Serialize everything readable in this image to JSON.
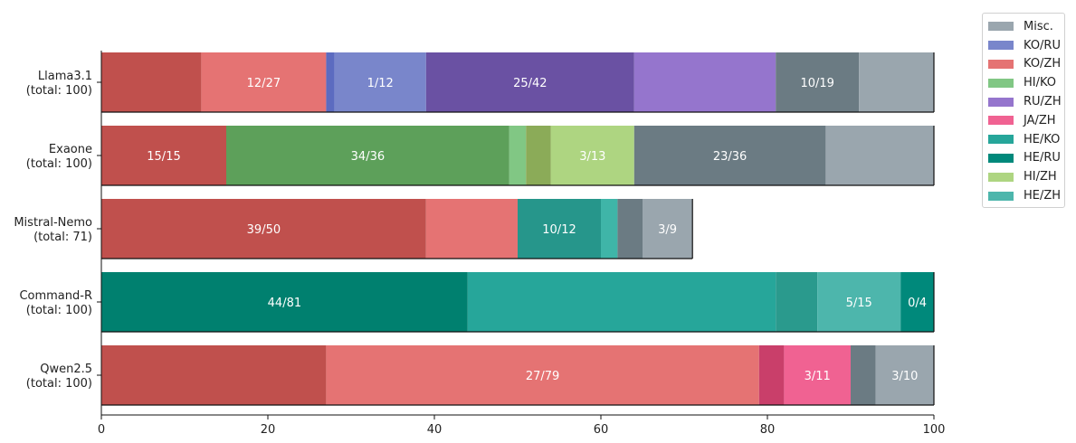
{
  "chart_data": {
    "type": "bar",
    "orientation": "horizontal",
    "stacked": true,
    "xlim": [
      0,
      100
    ],
    "x_ticks": [
      "0",
      "20",
      "40",
      "60",
      "80",
      "100"
    ],
    "categories": [
      [
        "Llama3.1",
        "(total: 100)"
      ],
      [
        "Exaone",
        "(total: 100)"
      ],
      [
        "Mistral-Nemo",
        "(total: 71)"
      ],
      [
        "Command-R",
        "(total: 100)"
      ],
      [
        "Qwen2.5",
        "(total: 100)"
      ]
    ],
    "legend": {
      "placement": "upper-right-outside",
      "entries": [
        {
          "label": "Misc.",
          "color": "#9aa6ae"
        },
        {
          "label": "KO/RU",
          "color": "#7986cb"
        },
        {
          "label": "KO/ZH",
          "color": "#e57373"
        },
        {
          "label": "HI/KO",
          "color": "#81c784"
        },
        {
          "label": "RU/ZH",
          "color": "#9575cd"
        },
        {
          "label": "JA/ZH",
          "color": "#f06292"
        },
        {
          "label": "HE/KO",
          "color": "#26a69a"
        },
        {
          "label": "HE/RU",
          "color": "#00897b"
        },
        {
          "label": "HI/ZH",
          "color": "#aed581"
        },
        {
          "label": "HE/ZH",
          "color": "#4db6ac"
        }
      ]
    },
    "bars": [
      {
        "name": "Llama3.1",
        "total": 100,
        "segments": [
          {
            "group": "KO/ZH",
            "value": 12,
            "color": "#c0504d"
          },
          {
            "group": "KO/ZH",
            "value": 15,
            "color": "#e57373",
            "label": "12/27"
          },
          {
            "group": "KO/RU",
            "value": 1,
            "color": "#5c6bc0"
          },
          {
            "group": "KO/RU",
            "value": 11,
            "color": "#7986cb",
            "label": "1/12"
          },
          {
            "group": "RU/ZH",
            "value": 25,
            "color": "#6a51a3",
            "label": "25/42"
          },
          {
            "group": "RU/ZH",
            "value": 17,
            "color": "#9575cd"
          },
          {
            "group": "Misc.",
            "value": 10,
            "color": "#6b7b83",
            "label": "10/19"
          },
          {
            "group": "Misc.",
            "value": 9,
            "color": "#9aa6ae"
          }
        ]
      },
      {
        "name": "Exaone",
        "total": 100,
        "segments": [
          {
            "group": "KO/ZH",
            "value": 15,
            "color": "#c0504d",
            "label": "15/15"
          },
          {
            "group": "HI/KO",
            "value": 34,
            "color": "#5da05a",
            "label": "34/36"
          },
          {
            "group": "HI/KO",
            "value": 2,
            "color": "#81c784"
          },
          {
            "group": "HI/ZH",
            "value": 3,
            "color": "#8bab58"
          },
          {
            "group": "HI/ZH",
            "value": 10,
            "color": "#aed581",
            "label": "3/13"
          },
          {
            "group": "Misc.",
            "value": 23,
            "color": "#6b7b83",
            "label": "23/36"
          },
          {
            "group": "Misc.",
            "value": 13,
            "color": "#9aa6ae"
          }
        ]
      },
      {
        "name": "Mistral-Nemo",
        "total": 71,
        "segments": [
          {
            "group": "KO/ZH",
            "value": 39,
            "color": "#c0504d",
            "label": "39/50"
          },
          {
            "group": "KO/ZH",
            "value": 11,
            "color": "#e57373"
          },
          {
            "group": "HE/KO",
            "value": 10,
            "color": "#26968b",
            "label": "10/12"
          },
          {
            "group": "HE/KO",
            "value": 2,
            "color": "#3fb5a8"
          },
          {
            "group": "Misc.",
            "value": 3,
            "color": "#6b7b83"
          },
          {
            "group": "Misc.",
            "value": 6,
            "color": "#9aa6ae",
            "label": "3/9"
          }
        ]
      },
      {
        "name": "Command-R",
        "total": 100,
        "segments": [
          {
            "group": "HE/RU",
            "value": 44,
            "color": "#00806f",
            "label": "44/81"
          },
          {
            "group": "HE/RU",
            "value": 37,
            "color": "#26a69a"
          },
          {
            "group": "HE/ZH",
            "value": 5,
            "color": "#2a9a8d"
          },
          {
            "group": "HE/ZH",
            "value": 10,
            "color": "#4db6ac",
            "label": "5/15"
          },
          {
            "group": "HE/KO",
            "value": 4,
            "color": "#00897b",
            "label": "0/4"
          }
        ]
      },
      {
        "name": "Qwen2.5",
        "total": 100,
        "segments": [
          {
            "group": "KO/ZH",
            "value": 27,
            "color": "#c0504d"
          },
          {
            "group": "KO/ZH",
            "value": 52,
            "color": "#e57373",
            "label": "27/79"
          },
          {
            "group": "JA/ZH",
            "value": 3,
            "color": "#c93f6a"
          },
          {
            "group": "JA/ZH",
            "value": 8,
            "color": "#f06292",
            "label": "3/11"
          },
          {
            "group": "Misc.",
            "value": 3,
            "color": "#6b7b83"
          },
          {
            "group": "Misc.",
            "value": 7,
            "color": "#9aa6ae",
            "label": "3/10"
          }
        ]
      }
    ]
  }
}
